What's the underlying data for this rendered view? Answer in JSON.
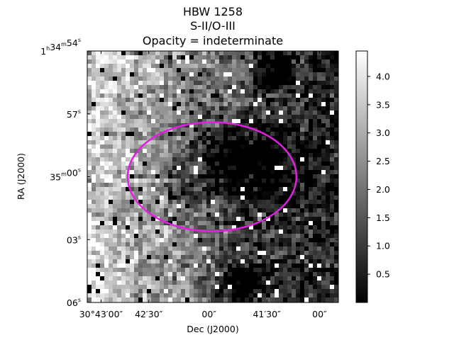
{
  "chart_data": {
    "type": "heatmap",
    "title": [
      "HBW 1258",
      "S-II/O-III",
      "Opacity = indeterminate"
    ],
    "xlabel": "Dec (J2000)",
    "ylabel": "RA (J2000)",
    "x_ticks": [
      {
        "parts": [
          {
            "t": "30°43′00″"
          }
        ]
      },
      {
        "parts": [
          {
            "t": "42′30″"
          }
        ]
      },
      {
        "parts": [
          {
            "t": "00″"
          }
        ]
      },
      {
        "parts": [
          {
            "t": "41′30″"
          }
        ]
      },
      {
        "parts": [
          {
            "t": "00″"
          }
        ]
      }
    ],
    "y_ticks": [
      {
        "parts": [
          {
            "t": "1"
          },
          {
            "t": "h",
            "sup": true
          },
          {
            "t": "34"
          },
          {
            "t": "m",
            "sup": true
          },
          {
            "t": "54"
          },
          {
            "t": "s",
            "sup": true
          }
        ]
      },
      {
        "parts": [
          {
            "t": "57"
          },
          {
            "t": "s",
            "sup": true
          }
        ]
      },
      {
        "parts": [
          {
            "t": "35"
          },
          {
            "t": "m",
            "sup": true
          },
          {
            "t": "00"
          },
          {
            "t": "s",
            "sup": true
          }
        ]
      },
      {
        "parts": [
          {
            "t": "03"
          },
          {
            "t": "s",
            "sup": true
          }
        ]
      },
      {
        "parts": [
          {
            "t": "06"
          },
          {
            "t": "s",
            "sup": true
          }
        ]
      }
    ],
    "colorbar": {
      "colormap": "gray",
      "range": [
        0.0,
        4.45
      ],
      "ticks": [
        0.5,
        1.0,
        1.5,
        2.0,
        2.5,
        3.0,
        3.5,
        4.0
      ]
    },
    "overlay": {
      "shape": "ellipse",
      "color": "#e020e0"
    },
    "colors": {
      "ellipse": "#e020e0",
      "frame": "#000000"
    }
  }
}
